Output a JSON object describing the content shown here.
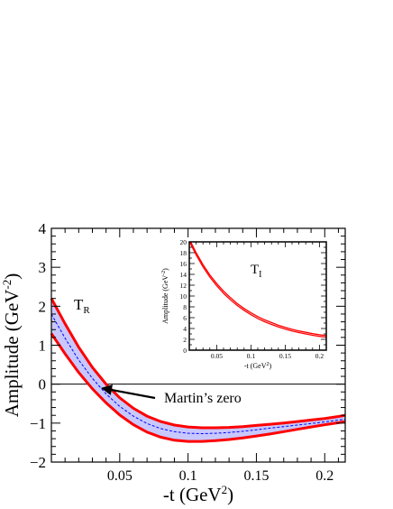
{
  "chart_data": [
    {
      "type": "line",
      "title": "",
      "xlabel": "-t (GeV",
      "xlabel_sup": "2",
      "xlabel_end": ")",
      "ylabel": "Amplitude (GeV",
      "ylabel_sup": "-2",
      "ylabel_end": ")",
      "xlim": [
        0.0,
        0.215
      ],
      "ylim": [
        -2,
        4
      ],
      "x_ticks": [
        0.05,
        0.1,
        0.15,
        0.2
      ],
      "x_tick_labels": [
        "0.05",
        "0.1",
        "0.15",
        "0.2"
      ],
      "y_ticks": [
        -2,
        -1,
        0,
        1,
        2,
        3,
        4
      ],
      "y_tick_labels": [
        "−2",
        "−1",
        "0",
        "1",
        "2",
        "3",
        "4"
      ],
      "panel_label": "T",
      "panel_label_sub": "R",
      "annotation": "Martin’s zero",
      "annotation_point": [
        0.035,
        -0.05
      ],
      "zero_line": true,
      "band_fill": "#c8c8ff",
      "band_edge_color": "#ff0000",
      "central_color": "#0000ff",
      "x": [
        0.0,
        0.01,
        0.02,
        0.03,
        0.04,
        0.05,
        0.06,
        0.07,
        0.08,
        0.09,
        0.1,
        0.11,
        0.12,
        0.13,
        0.14,
        0.15,
        0.16,
        0.17,
        0.18,
        0.19,
        0.2,
        0.21,
        0.215
      ],
      "series": [
        {
          "role": "upper",
          "values": [
            2.2,
            1.55,
            0.95,
            0.43,
            0.0,
            -0.35,
            -0.62,
            -0.82,
            -0.96,
            -1.05,
            -1.1,
            -1.12,
            -1.12,
            -1.11,
            -1.09,
            -1.06,
            -1.03,
            -1.0,
            -0.96,
            -0.92,
            -0.88,
            -0.83,
            -0.8
          ]
        },
        {
          "role": "central",
          "values": [
            1.8,
            1.18,
            0.62,
            0.15,
            -0.25,
            -0.57,
            -0.82,
            -1.01,
            -1.14,
            -1.22,
            -1.26,
            -1.27,
            -1.26,
            -1.24,
            -1.21,
            -1.17,
            -1.13,
            -1.09,
            -1.05,
            -1.01,
            -0.97,
            -0.92,
            -0.9
          ]
        },
        {
          "role": "lower",
          "values": [
            1.3,
            0.78,
            0.3,
            -0.12,
            -0.48,
            -0.79,
            -1.04,
            -1.23,
            -1.36,
            -1.44,
            -1.47,
            -1.47,
            -1.45,
            -1.42,
            -1.38,
            -1.33,
            -1.28,
            -1.22,
            -1.16,
            -1.1,
            -1.04,
            -0.99,
            -0.96
          ]
        }
      ]
    },
    {
      "type": "line",
      "title": "",
      "xlabel": "-t (GeV",
      "xlabel_sup": "2",
      "xlabel_end": ")",
      "ylabel": "Amplitude (GeV",
      "ylabel_sup": "-2",
      "ylabel_end": ")",
      "xlim": [
        0.01,
        0.21
      ],
      "ylim": [
        0,
        20
      ],
      "x_ticks": [
        0.05,
        0.1,
        0.15,
        0.2
      ],
      "x_tick_labels": [
        "0.05",
        "0.1",
        "0.15",
        "0.2"
      ],
      "y_ticks": [
        0,
        2,
        4,
        6,
        8,
        10,
        12,
        14,
        16,
        18,
        20
      ],
      "y_tick_labels": [
        "0",
        "2",
        "4",
        "6",
        "8",
        "10",
        "12",
        "14",
        "16",
        "18",
        "20"
      ],
      "panel_label": "T",
      "panel_label_sub": "I",
      "line_color": "#ff0000",
      "x": [
        0.01,
        0.02,
        0.03,
        0.04,
        0.05,
        0.06,
        0.07,
        0.08,
        0.09,
        0.1,
        0.11,
        0.12,
        0.13,
        0.14,
        0.15,
        0.16,
        0.17,
        0.18,
        0.19,
        0.2,
        0.21
      ],
      "series": [
        {
          "role": "upper",
          "values": [
            20.5,
            18.0,
            15.8,
            13.9,
            12.3,
            10.9,
            9.7,
            8.6,
            7.7,
            6.9,
            6.2,
            5.6,
            5.1,
            4.6,
            4.2,
            3.85,
            3.55,
            3.3,
            3.05,
            2.85,
            2.7
          ]
        },
        {
          "role": "lower",
          "values": [
            20.1,
            17.6,
            15.4,
            13.5,
            11.9,
            10.5,
            9.3,
            8.25,
            7.35,
            6.55,
            5.85,
            5.25,
            4.75,
            4.3,
            3.9,
            3.55,
            3.25,
            3.0,
            2.75,
            2.55,
            2.4
          ]
        }
      ]
    }
  ]
}
